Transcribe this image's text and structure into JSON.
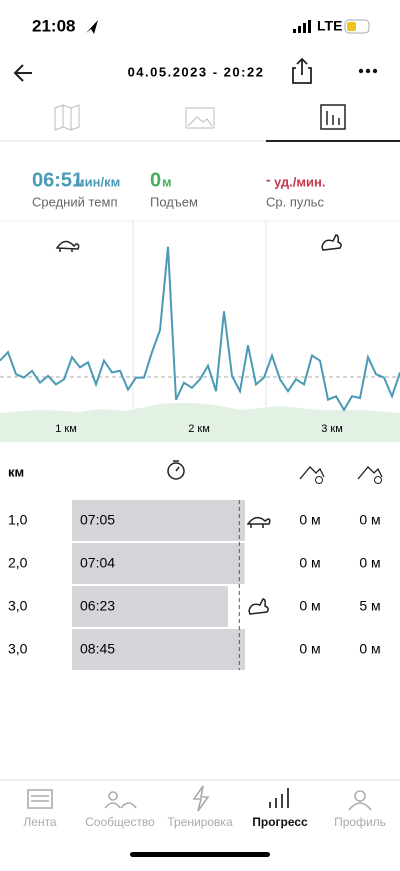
{
  "status": {
    "time": "21:08",
    "network": "LTE"
  },
  "header": {
    "title": "04.05.2023 - 20:22"
  },
  "stats": [
    {
      "value": "06:51",
      "unit": "мин/км",
      "label": "Средний темп"
    },
    {
      "value": "0",
      "unit": "м",
      "label": "Подъем"
    },
    {
      "value": "-",
      "unit": "уд./мин.",
      "label": "Ср. пульс"
    }
  ],
  "pace_graph": {
    "values": [
      32,
      37,
      24,
      22,
      26,
      19,
      23,
      18,
      21,
      34,
      28,
      31,
      18,
      32,
      25,
      26,
      15,
      22,
      22,
      37,
      50,
      99,
      9,
      19,
      16,
      21,
      29,
      14,
      61,
      23,
      14,
      41,
      18,
      22,
      35,
      21,
      14,
      21,
      18,
      35,
      32,
      9,
      11,
      3,
      11,
      10,
      34,
      24,
      22,
      11,
      25
    ],
    "ylim": [
      0,
      100
    ],
    "km_labels": [
      "1 км",
      "2 км",
      "3 км"
    ]
  },
  "table": {
    "header": "км",
    "rows": [
      [
        "1,0",
        "07:05",
        "0 м",
        "0 м"
      ],
      [
        "2,0",
        "07:04",
        "0 м",
        "0 м"
      ],
      [
        "3,0",
        "06:23",
        "0 м",
        "5 м"
      ],
      [
        "3,0",
        "08:45",
        "0 м",
        "0 м"
      ]
    ]
  },
  "nav": [
    "Лента",
    "Сообщество",
    "Тренировка",
    "Прогресс",
    "Профиль"
  ]
}
